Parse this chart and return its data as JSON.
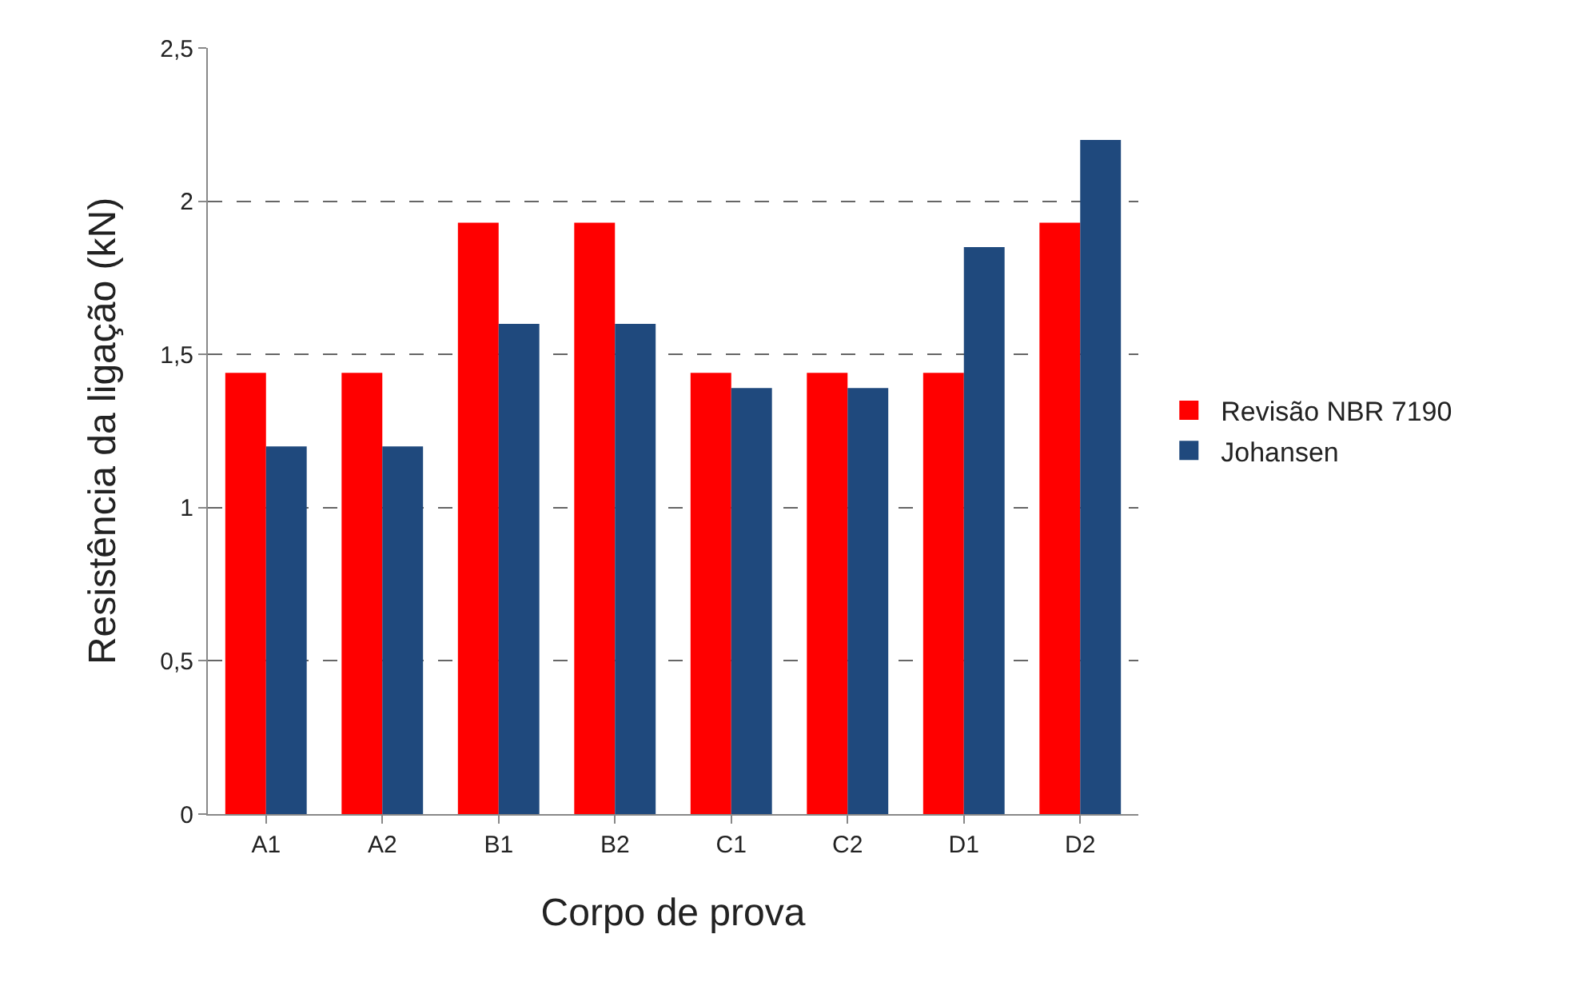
{
  "chart_data": {
    "type": "bar",
    "xlabel": "Corpo de prova",
    "ylabel": "Resistência da ligação (kN)",
    "categories": [
      "A1",
      "A2",
      "B1",
      "B2",
      "C1",
      "C2",
      "D1",
      "D2"
    ],
    "series": [
      {
        "name": "Revisão NBR 7190",
        "color": "#ff0000",
        "values": [
          1.44,
          1.44,
          1.93,
          1.93,
          1.44,
          1.44,
          1.44,
          1.93
        ]
      },
      {
        "name": "Johansen",
        "color": "#1f497d",
        "values": [
          1.2,
          1.2,
          1.6,
          1.6,
          1.39,
          1.39,
          1.85,
          2.2
        ]
      }
    ],
    "ylim": [
      0,
      2.5
    ],
    "yticks": [
      0,
      {
        "value": 0.5,
        "label": "0,5"
      },
      1,
      {
        "value": 1.5,
        "label": "1,5"
      },
      2,
      {
        "value": 2.5,
        "label": "2,5"
      }
    ],
    "grid": "y",
    "legend": "right"
  }
}
